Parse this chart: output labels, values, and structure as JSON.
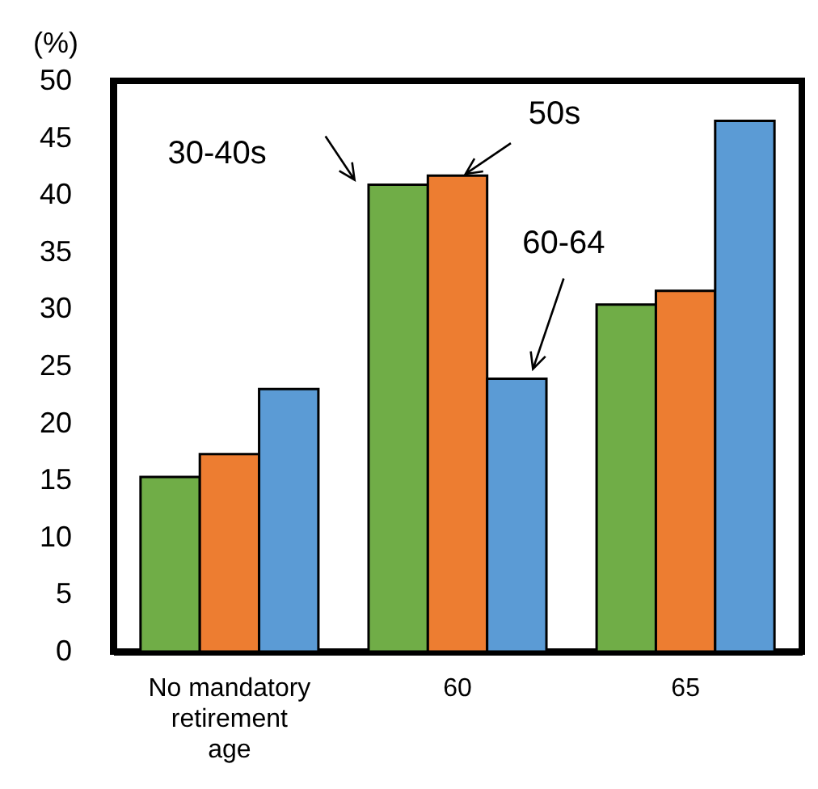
{
  "chart_data": {
    "type": "bar",
    "ylabel": "(%)",
    "categories": [
      "No mandatory retirement age",
      "60",
      "65"
    ],
    "series": [
      {
        "name": "30-40s",
        "color": "#70ad47",
        "values": [
          15.3,
          40.9,
          30.4
        ]
      },
      {
        "name": "50s",
        "color": "#ed7d31",
        "values": [
          17.3,
          41.7,
          31.6
        ]
      },
      {
        "name": "60-64",
        "color": "#5b9bd5",
        "values": [
          23.0,
          23.9,
          46.5
        ]
      }
    ],
    "ylim": [
      0,
      50
    ],
    "yticks": [
      0,
      5,
      10,
      15,
      20,
      25,
      30,
      35,
      40,
      45,
      50
    ],
    "grid": false,
    "legend": "top left"
  }
}
